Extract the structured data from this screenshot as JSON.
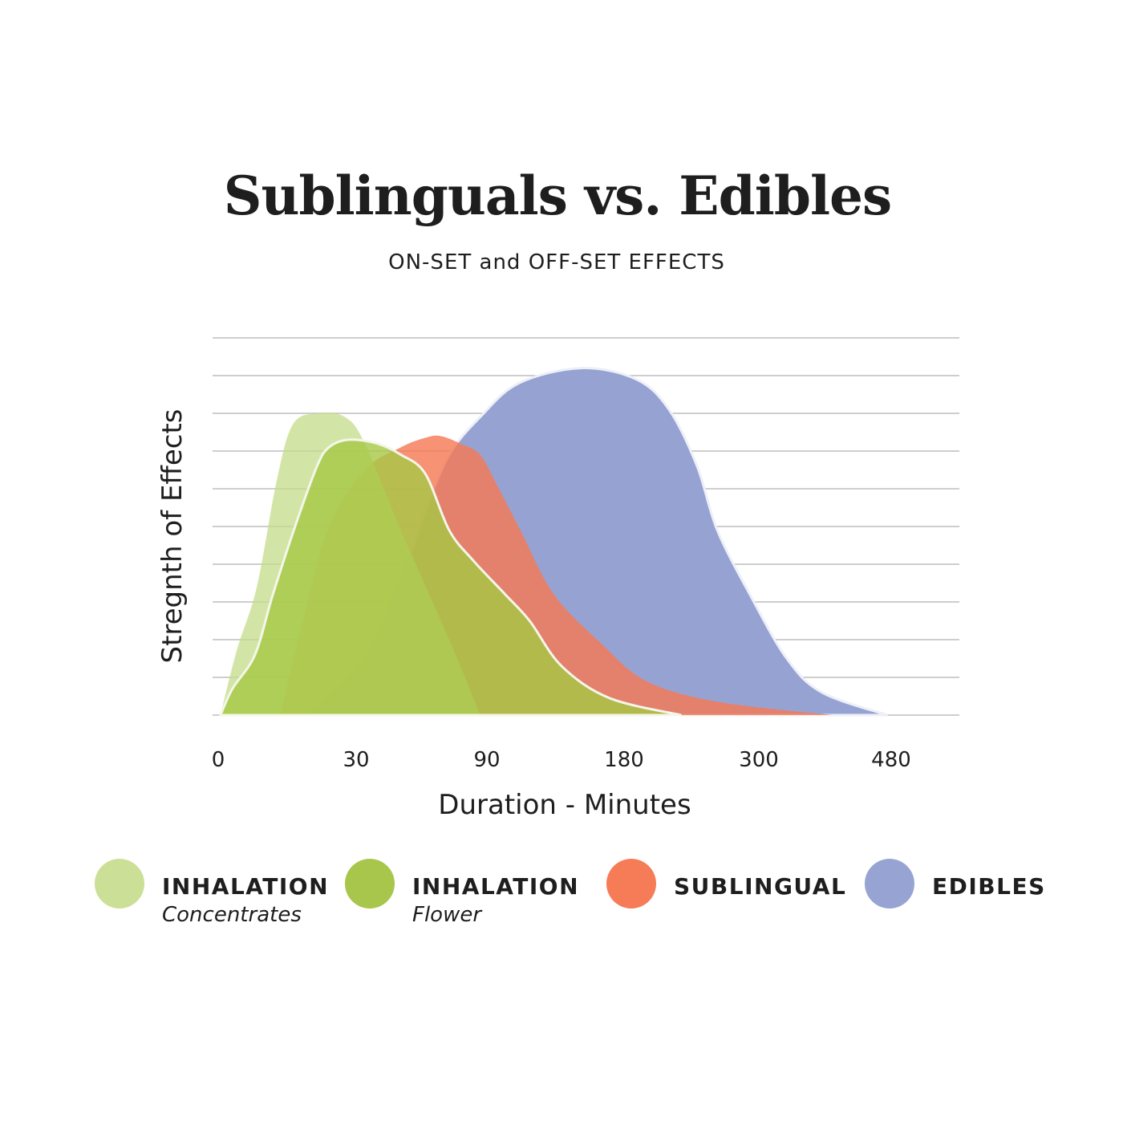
{
  "header": {
    "title": "Sublinguals vs. Edibles",
    "subtitle": "ON-SET and OFF-SET EFFECTS"
  },
  "chart_data": {
    "type": "area",
    "title": "Sublinguals vs. Edibles",
    "subtitle": "ON-SET and OFF-SET EFFECTS",
    "xlabel": "Duration - Minutes",
    "ylabel": "Stregnth of Effects",
    "x_ticks": [
      0,
      30,
      90,
      180,
      300,
      480
    ],
    "x_scale": "piecewise (ticks evenly spaced)",
    "ylim": [
      0,
      10
    ],
    "grid": true,
    "legend_position": "bottom",
    "series": [
      {
        "name": "INHALATION Concentrates",
        "color": "#c4dc88",
        "x": [
          0.5,
          4,
          8.4,
          12.7,
          16.2,
          21.5,
          27.6,
          34,
          50.6,
          72.7,
          87
        ],
        "y": [
          0,
          1.7,
          3.4,
          6.2,
          7.7,
          8.0,
          7.9,
          7.2,
          4.9,
          2.0,
          0
        ]
      },
      {
        "name": "INHALATION Flower",
        "color": "#a6c845",
        "x": [
          0.5,
          3.1,
          8,
          11.9,
          17,
          21.5,
          24.1,
          28.4,
          39.6,
          50.6,
          61.7,
          72.7,
          83.7,
          102,
          118,
          139,
          170.5,
          231
        ],
        "y": [
          0,
          0.7,
          1.6,
          3.2,
          5.1,
          6.6,
          7.1,
          7.3,
          7.2,
          6.9,
          6.4,
          4.9,
          4.1,
          3.2,
          2.5,
          1.3,
          0.45,
          0
        ]
      },
      {
        "name": "SUBLINGUAL",
        "color": "#f57a55",
        "x": [
          13.5,
          18.7,
          24.1,
          34,
          50.6,
          61.7,
          68.6,
          77.8,
          86.9,
          97.9,
          112,
          134,
          165,
          200,
          264,
          400
        ],
        "y": [
          0,
          2.6,
          5.0,
          6.5,
          7.1,
          7.35,
          7.4,
          7.2,
          6.9,
          6.0,
          4.9,
          3.2,
          1.9,
          0.9,
          0.35,
          0
        ]
      },
      {
        "name": "EDIBLES",
        "color": "#96a3d2",
        "x": [
          19.6,
          34,
          50.6,
          61.7,
          72.7,
          86.9,
          111,
          152,
          191,
          220,
          245,
          263,
          292,
          338,
          386,
          475
        ],
        "y": [
          0,
          1.5,
          3.6,
          5.4,
          6.9,
          7.9,
          8.8,
          9.2,
          8.9,
          8.1,
          6.6,
          4.9,
          3.2,
          1.5,
          0.6,
          0
        ]
      }
    ]
  },
  "legend": [
    {
      "label": "INHALATION",
      "sublabel": "Concentrates",
      "color": "#cbe096"
    },
    {
      "label": "INHALATION",
      "sublabel": "Flower",
      "color": "#a8c64b"
    },
    {
      "label": "SUBLINGUAL",
      "color": "#f67c57"
    },
    {
      "label": "EDIBLES",
      "color": "#97a4d3"
    }
  ]
}
